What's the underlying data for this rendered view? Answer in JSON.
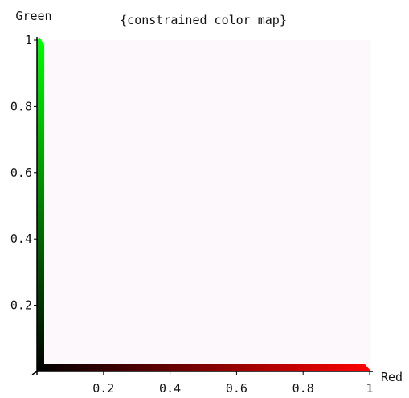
{
  "chart_data": {
    "type": "area",
    "title": "{constrained color map}",
    "xlabel": "Red",
    "ylabel": "Green",
    "xlim": [
      0,
      1
    ],
    "ylim": [
      0,
      1
    ],
    "x_ticks": [
      {
        "value": 0.2,
        "label": "0.2"
      },
      {
        "value": 0.4,
        "label": "0.4"
      },
      {
        "value": 0.6,
        "label": "0.6"
      },
      {
        "value": 0.8,
        "label": "0.8"
      },
      {
        "value": 1,
        "label": "1"
      }
    ],
    "y_ticks": [
      {
        "value": 0.2,
        "label": "0.2"
      },
      {
        "value": 0.4,
        "label": "0.4"
      },
      {
        "value": 0.6,
        "label": "0.6"
      },
      {
        "value": 0.8,
        "label": "0.8"
      },
      {
        "value": 1,
        "label": "1"
      }
    ],
    "series": [
      {
        "color_start": "#000000",
        "color_end": "#ff0000",
        "x": [
          0,
          1
        ],
        "y": [
          0,
          0
        ]
      },
      {
        "color_start": "#000000",
        "color_end": "#00ff00",
        "x": [
          0,
          0
        ],
        "y": [
          0,
          1
        ]
      }
    ],
    "grid": false,
    "colors": {
      "background": "#fdf8fb",
      "axis": "#000000"
    }
  }
}
